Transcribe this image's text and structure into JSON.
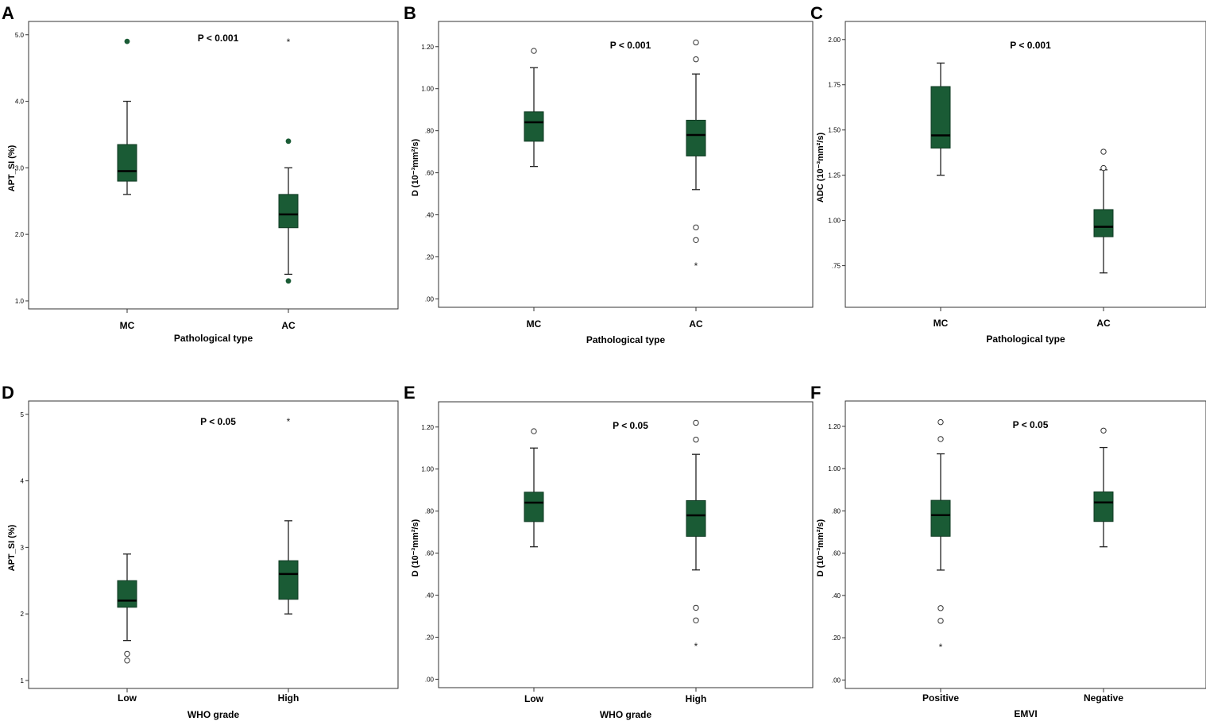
{
  "colors": {
    "box_fill": "#1a5b35",
    "box_stroke": "#0f3a22",
    "outlier_filled": "#1a5b35",
    "star_green": "#3d7a55"
  },
  "chart_data": [
    {
      "panel": "A",
      "type": "boxplot",
      "title": "P < 0.001",
      "xlabel": "Pathological type",
      "ylabel": "APT_SI (%)",
      "ylim": [
        0.88,
        5.2
      ],
      "yticks": [
        1.0,
        2.0,
        3.0,
        4.0,
        5.0
      ],
      "ytick_labels": [
        "1.0",
        "2.0",
        "3.0",
        "4.0",
        "5.0"
      ],
      "categories": [
        "MC",
        "AC"
      ],
      "boxes": [
        {
          "min": 2.6,
          "q1": 2.8,
          "median": 2.95,
          "q3": 3.35,
          "max": 4.0,
          "outliers": [
            {
              "value": 4.9,
              "marker": "dot"
            }
          ]
        },
        {
          "min": 1.4,
          "q1": 2.1,
          "median": 2.3,
          "q3": 2.6,
          "max": 3.0,
          "outliers": [
            {
              "value": 3.4,
              "marker": "dot"
            },
            {
              "value": 1.3,
              "marker": "dot"
            },
            {
              "value": 4.9,
              "marker": "star-green"
            }
          ]
        }
      ]
    },
    {
      "panel": "B",
      "type": "boxplot",
      "title": "P < 0.001",
      "xlabel": "Pathological type",
      "ylabel": "D (10⁻³mm²/s)",
      "ylim": [
        -0.04,
        1.32
      ],
      "yticks": [
        0.0,
        0.2,
        0.4,
        0.6,
        0.8,
        1.0,
        1.2
      ],
      "ytick_labels": [
        ".00",
        ".20",
        ".40",
        ".60",
        ".80",
        "1.00",
        "1.20"
      ],
      "categories": [
        "MC",
        "AC"
      ],
      "boxes": [
        {
          "min": 0.63,
          "q1": 0.75,
          "median": 0.84,
          "q3": 0.89,
          "max": 1.1,
          "outliers": [
            {
              "value": 1.18,
              "marker": "circle"
            }
          ]
        },
        {
          "min": 0.52,
          "q1": 0.68,
          "median": 0.78,
          "q3": 0.85,
          "max": 1.07,
          "outliers": [
            {
              "value": 1.22,
              "marker": "circle"
            },
            {
              "value": 1.14,
              "marker": "circle"
            },
            {
              "value": 0.34,
              "marker": "circle"
            },
            {
              "value": 0.28,
              "marker": "circle"
            },
            {
              "value": 0.16,
              "marker": "star"
            }
          ]
        }
      ]
    },
    {
      "panel": "C",
      "type": "boxplot",
      "title": "P < 0.001",
      "xlabel": "Pathological type",
      "ylabel": "ADC (10⁻³mm²/s)",
      "ylim": [
        0.52,
        2.1
      ],
      "yticks": [
        0.75,
        1.0,
        1.25,
        1.5,
        1.75,
        2.0
      ],
      "ytick_labels": [
        ".75",
        "1.00",
        "1.25",
        "1.50",
        "1.75",
        "2.00"
      ],
      "categories": [
        "MC",
        "AC"
      ],
      "boxes": [
        {
          "min": 1.25,
          "q1": 1.4,
          "median": 1.47,
          "q3": 1.74,
          "max": 1.87,
          "outliers": []
        },
        {
          "min": 0.71,
          "q1": 0.91,
          "median": 0.965,
          "q3": 1.06,
          "max": 1.28,
          "outliers": [
            {
              "value": 1.38,
              "marker": "circle"
            },
            {
              "value": 1.29,
              "marker": "circle"
            }
          ]
        }
      ]
    },
    {
      "panel": "D",
      "type": "boxplot",
      "title": "P < 0.05",
      "xlabel": "WHO grade",
      "ylabel": "APT_SI (%)",
      "ylim": [
        0.88,
        5.2
      ],
      "yticks": [
        1,
        2,
        3,
        4,
        5
      ],
      "ytick_labels": [
        "1",
        "2",
        "3",
        "4",
        "5"
      ],
      "categories": [
        "Low",
        "High"
      ],
      "boxes": [
        {
          "min": 1.6,
          "q1": 2.1,
          "median": 2.2,
          "q3": 2.5,
          "max": 2.9,
          "outliers": [
            {
              "value": 1.4,
              "marker": "circle"
            },
            {
              "value": 1.3,
              "marker": "circle"
            }
          ]
        },
        {
          "min": 2.0,
          "q1": 2.22,
          "median": 2.6,
          "q3": 2.8,
          "max": 3.4,
          "outliers": [
            {
              "value": 4.9,
              "marker": "star"
            }
          ]
        }
      ]
    },
    {
      "panel": "E",
      "type": "boxplot",
      "title": "P < 0.05",
      "xlabel": "WHO grade",
      "ylabel": "D (10⁻³mm²/s)",
      "ylim": [
        -0.04,
        1.32
      ],
      "yticks": [
        0.0,
        0.2,
        0.4,
        0.6,
        0.8,
        1.0,
        1.2
      ],
      "ytick_labels": [
        ".00",
        ".20",
        ".40",
        ".60",
        ".80",
        "1.00",
        "1.20"
      ],
      "categories": [
        "Low",
        "High"
      ],
      "boxes": [
        {
          "min": 0.63,
          "q1": 0.75,
          "median": 0.84,
          "q3": 0.89,
          "max": 1.1,
          "outliers": [
            {
              "value": 1.18,
              "marker": "circle"
            }
          ]
        },
        {
          "min": 0.52,
          "q1": 0.68,
          "median": 0.78,
          "q3": 0.85,
          "max": 1.07,
          "outliers": [
            {
              "value": 1.22,
              "marker": "circle"
            },
            {
              "value": 1.14,
              "marker": "circle"
            },
            {
              "value": 0.34,
              "marker": "circle"
            },
            {
              "value": 0.28,
              "marker": "circle"
            },
            {
              "value": 0.16,
              "marker": "star"
            }
          ]
        }
      ]
    },
    {
      "panel": "F",
      "type": "boxplot",
      "title": "P < 0.05",
      "xlabel": "EMVI",
      "ylabel": "D (10⁻³mm²/s)",
      "ylim": [
        -0.04,
        1.32
      ],
      "yticks": [
        0.0,
        0.2,
        0.4,
        0.6,
        0.8,
        1.0,
        1.2
      ],
      "ytick_labels": [
        ".00",
        ".20",
        ".40",
        ".60",
        ".80",
        "1.00",
        "1.20"
      ],
      "categories": [
        "Positive",
        "Negative"
      ],
      "boxes": [
        {
          "min": 0.52,
          "q1": 0.68,
          "median": 0.78,
          "q3": 0.85,
          "max": 1.07,
          "outliers": [
            {
              "value": 1.22,
              "marker": "circle"
            },
            {
              "value": 1.14,
              "marker": "circle"
            },
            {
              "value": 0.34,
              "marker": "circle"
            },
            {
              "value": 0.28,
              "marker": "circle"
            },
            {
              "value": 0.16,
              "marker": "star"
            }
          ]
        },
        {
          "min": 0.63,
          "q1": 0.75,
          "median": 0.84,
          "q3": 0.89,
          "max": 1.1,
          "outliers": [
            {
              "value": 1.18,
              "marker": "circle"
            }
          ]
        }
      ]
    }
  ]
}
